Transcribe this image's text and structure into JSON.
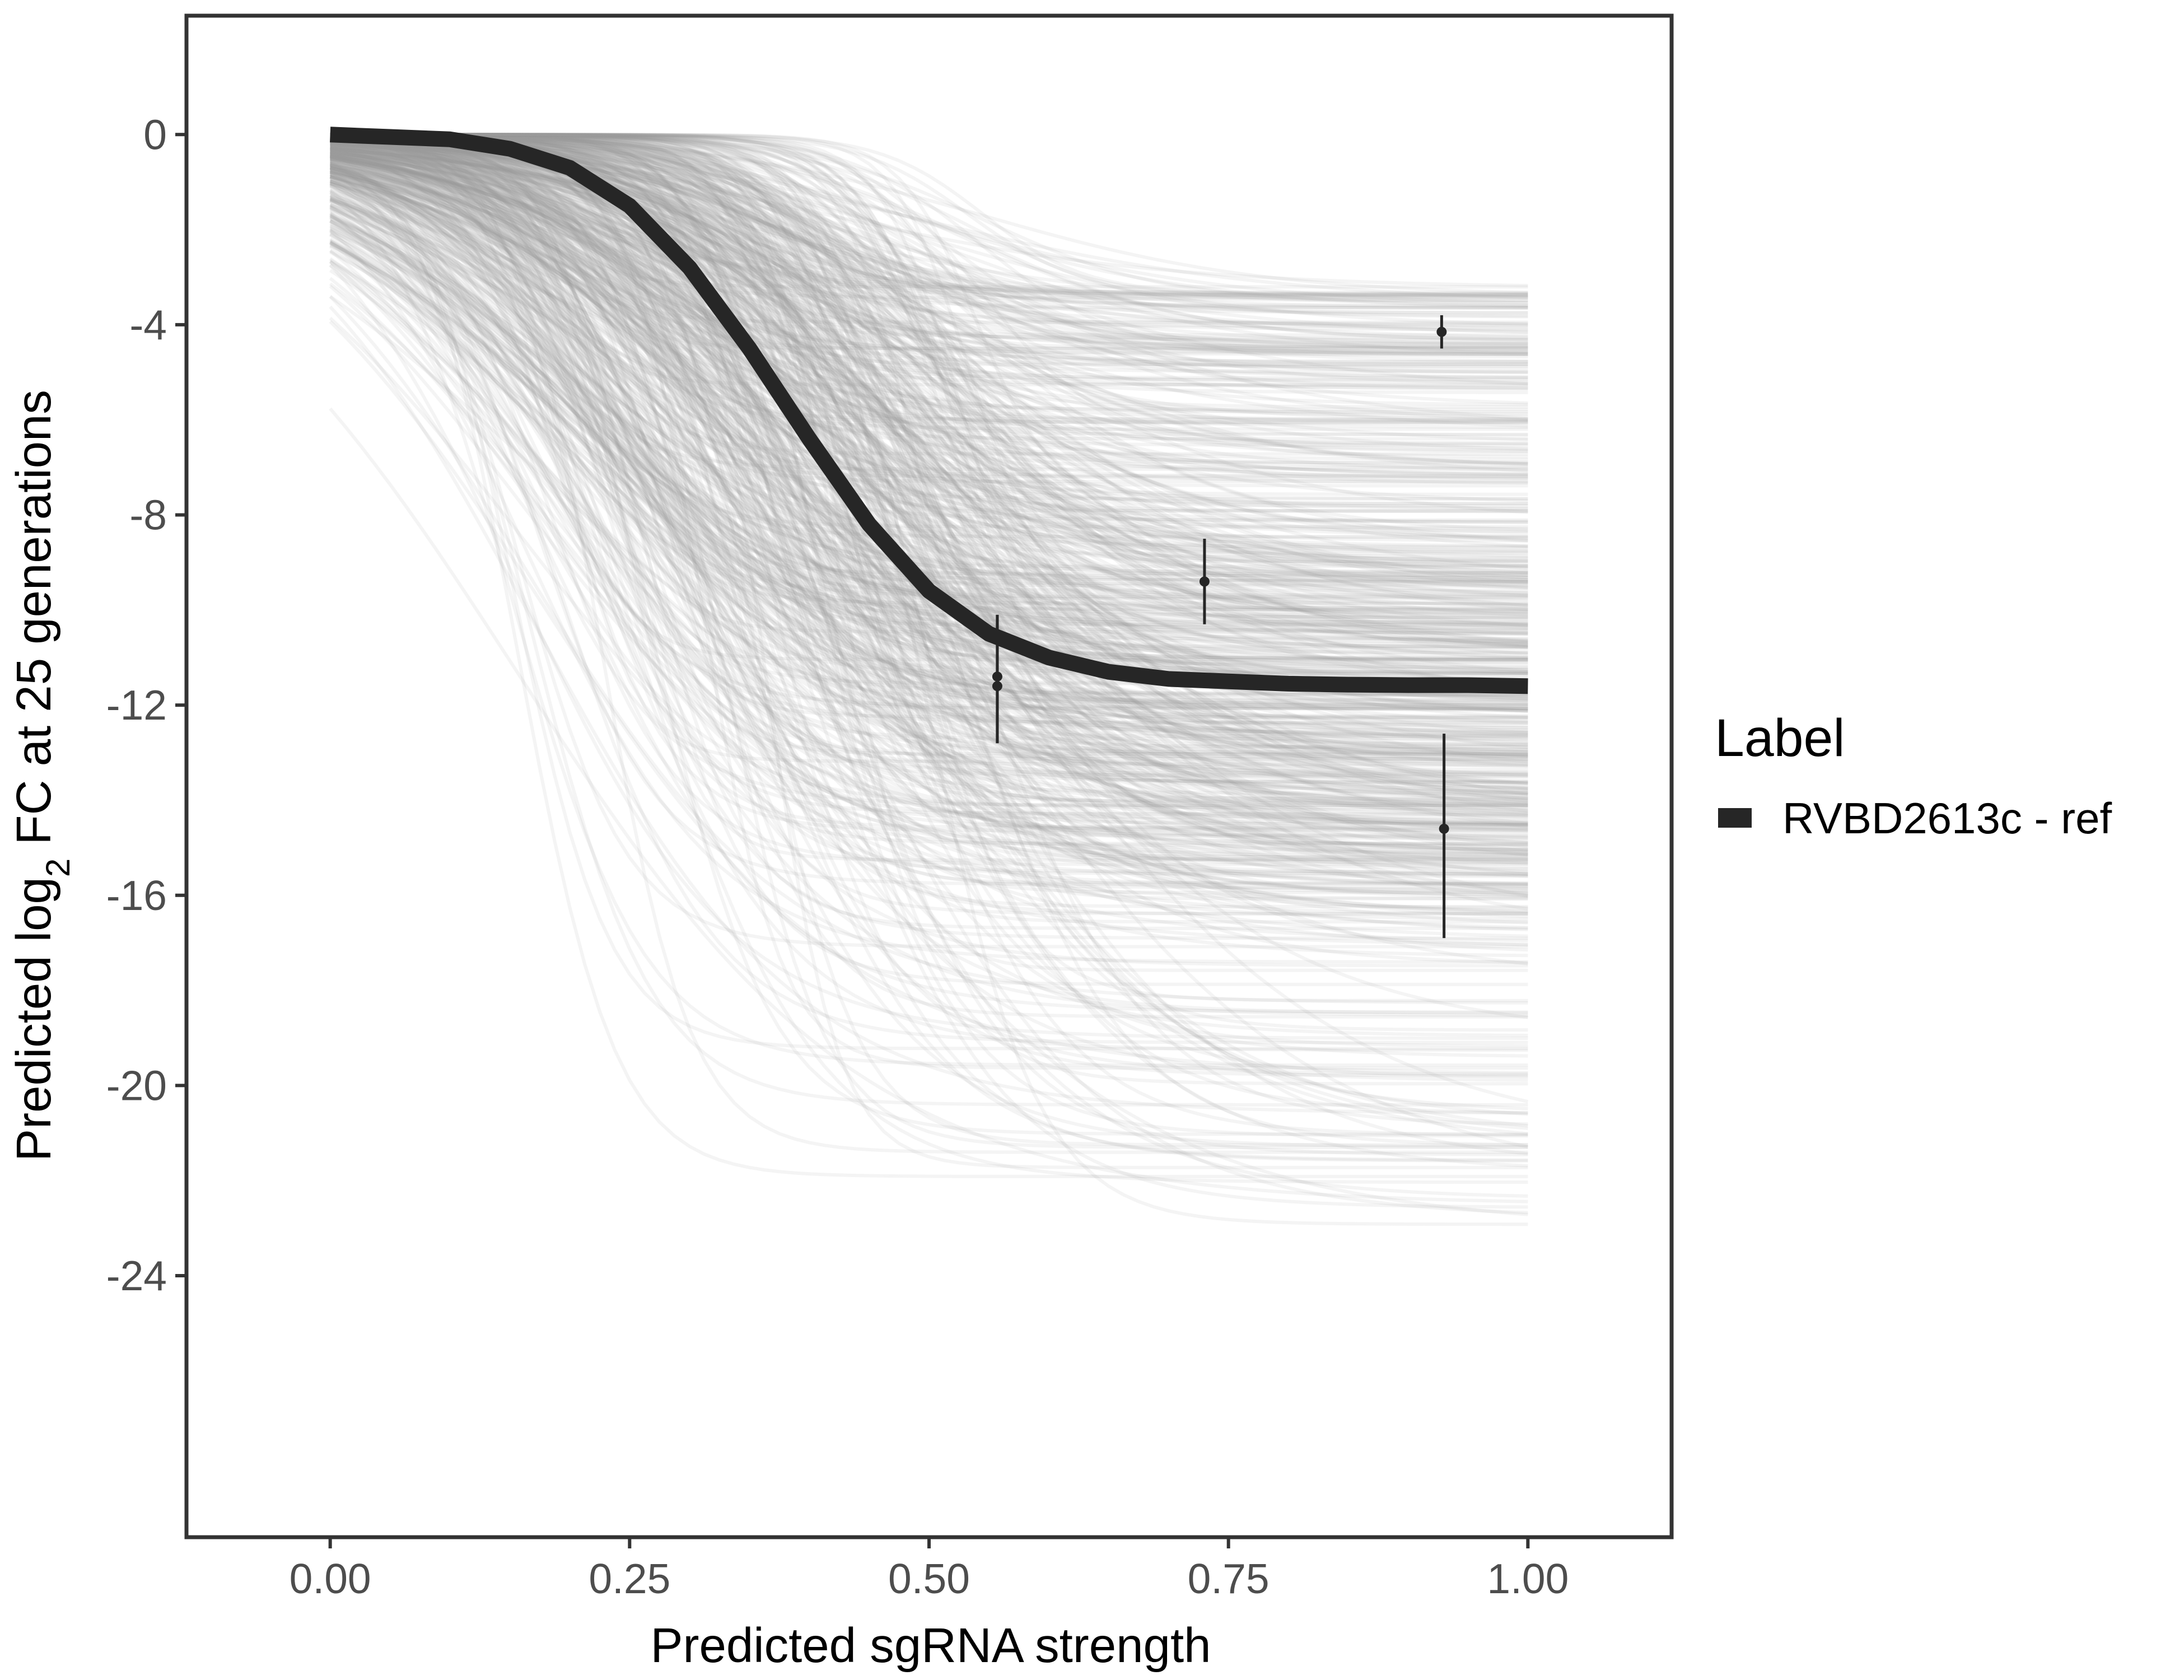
{
  "chart_data": {
    "type": "line",
    "xlabel": "Predicted sgRNA strength",
    "ylabel_prefix": "Predicted  log",
    "ylabel_sub": "2",
    "ylabel_suffix": " FC at 25 generations",
    "xlim": [
      -0.12,
      1.12
    ],
    "ylim": [
      -29.5,
      2.5
    ],
    "x_ticks": [
      0,
      0.25,
      0.5,
      0.75,
      1
    ],
    "x_tick_labels": [
      "0.00",
      "0.25",
      "0.50",
      "0.75",
      "1.00"
    ],
    "y_ticks": [
      0,
      -4,
      -8,
      -12,
      -16,
      -20,
      -24
    ],
    "y_tick_labels": [
      "0",
      "-4",
      "-8",
      "-12",
      "-16",
      "-20",
      "-24"
    ],
    "grid": false,
    "legend": {
      "title": "Label",
      "position": "right",
      "entries": [
        {
          "label": "RVBD2613c - ref",
          "color": "#262626"
        }
      ]
    },
    "fit_curve": {
      "name": "RVBD2613c - ref",
      "color": "#262626",
      "x": [
        0,
        0.05,
        0.1,
        0.15,
        0.2,
        0.25,
        0.3,
        0.35,
        0.4,
        0.45,
        0.5,
        0.55,
        0.6,
        0.65,
        0.7,
        0.75,
        0.8,
        0.85,
        0.9,
        0.95,
        1
      ],
      "y": [
        0,
        -0.05,
        -0.1,
        -0.3,
        -0.7,
        -1.5,
        -2.8,
        -4.5,
        -6.4,
        -8.2,
        -9.6,
        -10.5,
        -11.0,
        -11.3,
        -11.45,
        -11.5,
        -11.55,
        -11.57,
        -11.58,
        -11.58,
        -11.6
      ]
    },
    "posterior_draws": {
      "color": "#9e9e9e",
      "count": 700,
      "plateau_range": [
        -23.2,
        -3.2
      ],
      "midpoint_range": [
        0.15,
        0.55
      ]
    },
    "observations": [
      {
        "x": 0.557,
        "y": -11.4,
        "ymin": -12.8,
        "ymax": -10.1
      },
      {
        "x": 0.557,
        "y": -11.6,
        "ymin": -12.8,
        "ymax": -10.1
      },
      {
        "x": 0.73,
        "y": -9.4,
        "ymin": -10.3,
        "ymax": -8.5
      },
      {
        "x": 0.928,
        "y": -4.15,
        "ymin": -4.5,
        "ymax": -3.8
      },
      {
        "x": 0.93,
        "y": -14.6,
        "ymin": -16.9,
        "ymax": -12.6
      }
    ]
  }
}
